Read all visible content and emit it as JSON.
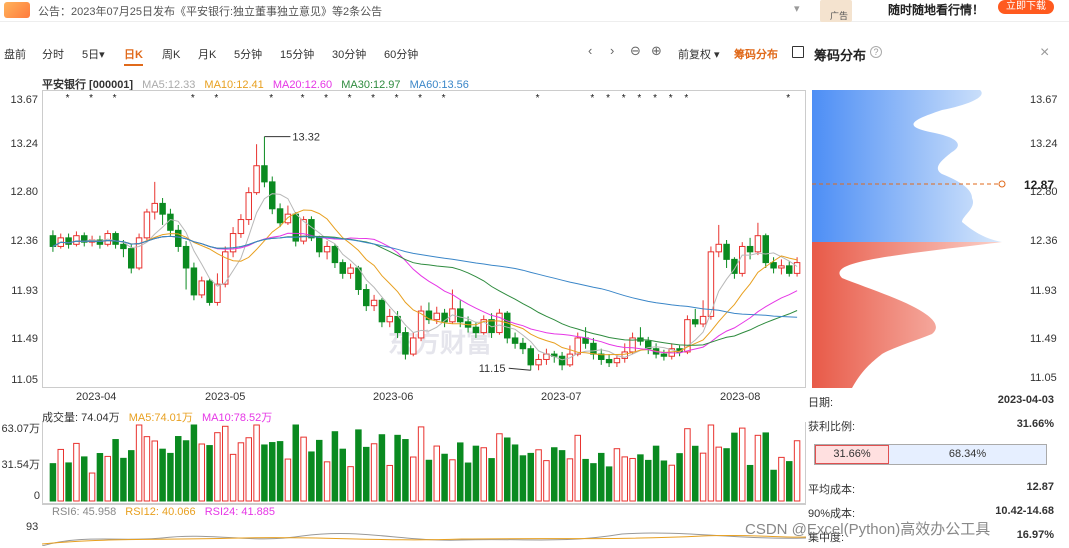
{
  "announcement": {
    "text": "公告：2023年07月25日发布《平安银行:独立董事独立意见》等2条公告",
    "ad_label": "广告",
    "ad_text": "随时随地看行情！",
    "ad_button": "立即下载"
  },
  "toolbar": {
    "tabs": [
      "盘前",
      "分时",
      "5日▾",
      "日K",
      "周K",
      "月K",
      "5分钟",
      "15分钟",
      "30分钟",
      "60分钟"
    ],
    "active_tab": "日K",
    "adjust": "前复权 ▾",
    "chip_toggle": "筹码分布",
    "panel_title": "筹码分布",
    "help": "?",
    "close": "×",
    "prev": "‹",
    "next": "›",
    "zoom_out": "⊖",
    "zoom_in": "⊕"
  },
  "legend": {
    "name": "平安银行 [000001]",
    "ma5": "MA5:12.33",
    "ma10": "MA10:12.41",
    "ma20": "MA20:12.60",
    "ma30": "MA30:12.97",
    "ma60": "MA60:13.56"
  },
  "colors": {
    "up": "#e8322e",
    "down": "#0a8a20",
    "ma5": "#b8b8b8",
    "ma10": "#e8a020",
    "ma20": "#e636e6",
    "ma30": "#2e8b3e",
    "ma60": "#3a86c8",
    "profit": "#f08070",
    "loss": "#6aa8f0",
    "accent": "#e06a1b"
  },
  "price_axis": [
    "13.67",
    "13.24",
    "12.80",
    "12.36",
    "11.93",
    "11.49",
    "11.05"
  ],
  "date_axis": [
    "2023-04",
    "2023-05",
    "2023-06",
    "2023-07",
    "2023-08"
  ],
  "annotations": {
    "high": "13.32",
    "low": "11.15"
  },
  "watermark_logo": "东方财富",
  "volume": {
    "title": "成交量: 74.04万",
    "ma5": "MA5:74.01万",
    "ma10": "MA10:78.52万",
    "ticks": [
      "63.07万",
      "31.54万",
      "0"
    ]
  },
  "rsi": {
    "rsi6": "RSI6: 45.958",
    "rsi12": "RSI12: 40.066",
    "rsi24": "RSI24: 41.885",
    "tick": "93"
  },
  "chip_panel": {
    "ticks": [
      "13.67",
      "13.24",
      "12.80",
      "12.36",
      "11.93",
      "11.49",
      "11.05"
    ],
    "current_price": "12.87",
    "date_label": "日期:",
    "date_value": "2023-04-03",
    "profit_label": "获利比例:",
    "profit_value": "31.66%",
    "profit_pct": "31.66%",
    "loss_pct": "68.34%",
    "avg_cost_label": "平均成本:",
    "avg_cost_value": "12.87",
    "cost90_label": "90%成本:",
    "cost90_value": "10.42-14.68",
    "concentration_label": "集中度:",
    "concentration_value": "16.97%"
  },
  "footer_watermark": "CSDN @Excel(Python)高效办公工具",
  "chart_data": {
    "type": "candlestick",
    "title": "",
    "ylim": [
      11.05,
      13.67
    ],
    "candles": [
      {
        "o": 12.4,
        "c": 12.3,
        "h": 12.45,
        "l": 12.25
      },
      {
        "o": 12.3,
        "c": 12.38,
        "h": 12.42,
        "l": 12.28
      },
      {
        "o": 12.38,
        "c": 12.32,
        "h": 12.42,
        "l": 12.28
      },
      {
        "o": 12.32,
        "c": 12.4,
        "h": 12.44,
        "l": 12.3
      },
      {
        "o": 12.4,
        "c": 12.34,
        "h": 12.43,
        "l": 12.3
      },
      {
        "o": 12.34,
        "c": 12.36,
        "h": 12.4,
        "l": 12.3
      },
      {
        "o": 12.36,
        "c": 12.32,
        "h": 12.4,
        "l": 12.28
      },
      {
        "o": 12.32,
        "c": 12.42,
        "h": 12.45,
        "l": 12.3
      },
      {
        "o": 12.42,
        "c": 12.32,
        "h": 12.44,
        "l": 12.28
      },
      {
        "o": 12.32,
        "c": 12.28,
        "h": 12.36,
        "l": 12.2
      },
      {
        "o": 12.28,
        "c": 12.1,
        "h": 12.32,
        "l": 12.05
      },
      {
        "o": 12.1,
        "c": 12.38,
        "h": 12.42,
        "l": 12.08
      },
      {
        "o": 12.38,
        "c": 12.62,
        "h": 12.65,
        "l": 12.36
      },
      {
        "o": 12.62,
        "c": 12.7,
        "h": 12.9,
        "l": 12.55
      },
      {
        "o": 12.7,
        "c": 12.6,
        "h": 12.75,
        "l": 12.5
      },
      {
        "o": 12.6,
        "c": 12.45,
        "h": 12.65,
        "l": 12.4
      },
      {
        "o": 12.45,
        "c": 12.3,
        "h": 12.5,
        "l": 12.25
      },
      {
        "o": 12.3,
        "c": 12.1,
        "h": 12.35,
        "l": 11.9
      },
      {
        "o": 12.1,
        "c": 11.85,
        "h": 12.15,
        "l": 11.8
      },
      {
        "o": 11.85,
        "c": 11.98,
        "h": 12.02,
        "l": 11.82
      },
      {
        "o": 11.98,
        "c": 11.78,
        "h": 12.0,
        "l": 11.75
      },
      {
        "o": 11.78,
        "c": 11.95,
        "h": 12.05,
        "l": 11.75
      },
      {
        "o": 11.95,
        "c": 12.25,
        "h": 12.3,
        "l": 11.92
      },
      {
        "o": 12.25,
        "c": 12.42,
        "h": 12.48,
        "l": 12.2
      },
      {
        "o": 12.42,
        "c": 12.55,
        "h": 12.6,
        "l": 12.38
      },
      {
        "o": 12.55,
        "c": 12.8,
        "h": 12.85,
        "l": 12.5
      },
      {
        "o": 12.8,
        "c": 13.05,
        "h": 13.25,
        "l": 12.78
      },
      {
        "o": 13.05,
        "c": 12.9,
        "h": 13.32,
        "l": 12.85
      },
      {
        "o": 12.9,
        "c": 12.65,
        "h": 12.95,
        "l": 12.6
      },
      {
        "o": 12.65,
        "c": 12.52,
        "h": 12.7,
        "l": 12.48
      },
      {
        "o": 12.52,
        "c": 12.6,
        "h": 12.68,
        "l": 12.5
      },
      {
        "o": 12.6,
        "c": 12.35,
        "h": 12.62,
        "l": 12.3
      },
      {
        "o": 12.35,
        "c": 12.55,
        "h": 12.58,
        "l": 12.32
      },
      {
        "o": 12.55,
        "c": 12.38,
        "h": 12.58,
        "l": 12.35
      },
      {
        "o": 12.38,
        "c": 12.25,
        "h": 12.4,
        "l": 12.2
      },
      {
        "o": 12.25,
        "c": 12.3,
        "h": 12.35,
        "l": 12.18
      },
      {
        "o": 12.3,
        "c": 12.15,
        "h": 12.32,
        "l": 12.1
      },
      {
        "o": 12.15,
        "c": 12.05,
        "h": 12.18,
        "l": 12.0
      },
      {
        "o": 12.05,
        "c": 12.1,
        "h": 12.14,
        "l": 12.0
      },
      {
        "o": 12.1,
        "c": 11.9,
        "h": 12.12,
        "l": 11.85
      },
      {
        "o": 11.9,
        "c": 11.75,
        "h": 11.95,
        "l": 11.7
      },
      {
        "o": 11.75,
        "c": 11.8,
        "h": 11.85,
        "l": 11.7
      },
      {
        "o": 11.8,
        "c": 11.6,
        "h": 11.82,
        "l": 11.55
      },
      {
        "o": 11.6,
        "c": 11.65,
        "h": 11.72,
        "l": 11.55
      },
      {
        "o": 11.65,
        "c": 11.5,
        "h": 11.7,
        "l": 11.45
      },
      {
        "o": 11.5,
        "c": 11.3,
        "h": 11.55,
        "l": 11.25
      },
      {
        "o": 11.3,
        "c": 11.45,
        "h": 11.5,
        "l": 11.28
      },
      {
        "o": 11.45,
        "c": 11.7,
        "h": 11.75,
        "l": 11.42
      },
      {
        "o": 11.7,
        "c": 11.62,
        "h": 11.78,
        "l": 11.58
      },
      {
        "o": 11.62,
        "c": 11.68,
        "h": 11.74,
        "l": 11.58
      },
      {
        "o": 11.68,
        "c": 11.6,
        "h": 11.72,
        "l": 11.55
      },
      {
        "o": 11.6,
        "c": 11.72,
        "h": 11.9,
        "l": 11.58
      },
      {
        "o": 11.72,
        "c": 11.6,
        "h": 11.8,
        "l": 11.55
      },
      {
        "o": 11.6,
        "c": 11.55,
        "h": 11.65,
        "l": 11.5
      },
      {
        "o": 11.55,
        "c": 11.5,
        "h": 11.6,
        "l": 11.45
      },
      {
        "o": 11.5,
        "c": 11.62,
        "h": 11.66,
        "l": 11.48
      },
      {
        "o": 11.62,
        "c": 11.5,
        "h": 11.68,
        "l": 11.45
      },
      {
        "o": 11.5,
        "c": 11.68,
        "h": 11.72,
        "l": 11.48
      },
      {
        "o": 11.68,
        "c": 11.45,
        "h": 11.7,
        "l": 11.4
      },
      {
        "o": 11.45,
        "c": 11.4,
        "h": 11.5,
        "l": 11.35
      },
      {
        "o": 11.4,
        "c": 11.35,
        "h": 11.45,
        "l": 11.3
      },
      {
        "o": 11.35,
        "c": 11.2,
        "h": 11.38,
        "l": 11.15
      },
      {
        "o": 11.2,
        "c": 11.25,
        "h": 11.3,
        "l": 11.15
      },
      {
        "o": 11.25,
        "c": 11.3,
        "h": 11.35,
        "l": 11.2
      },
      {
        "o": 11.3,
        "c": 11.28,
        "h": 11.33,
        "l": 11.22
      },
      {
        "o": 11.28,
        "c": 11.2,
        "h": 11.32,
        "l": 11.15
      },
      {
        "o": 11.2,
        "c": 11.3,
        "h": 11.38,
        "l": 11.18
      },
      {
        "o": 11.3,
        "c": 11.45,
        "h": 11.5,
        "l": 11.28
      },
      {
        "o": 11.45,
        "c": 11.4,
        "h": 11.55,
        "l": 11.35
      },
      {
        "o": 11.4,
        "c": 11.3,
        "h": 11.45,
        "l": 11.25
      },
      {
        "o": 11.3,
        "c": 11.25,
        "h": 11.35,
        "l": 11.2
      },
      {
        "o": 11.25,
        "c": 11.22,
        "h": 11.3,
        "l": 11.18
      },
      {
        "o": 11.22,
        "c": 11.26,
        "h": 11.3,
        "l": 11.18
      },
      {
        "o": 11.26,
        "c": 11.32,
        "h": 11.4,
        "l": 11.22
      },
      {
        "o": 11.32,
        "c": 11.45,
        "h": 11.5,
        "l": 11.3
      },
      {
        "o": 11.45,
        "c": 11.42,
        "h": 11.55,
        "l": 11.38
      },
      {
        "o": 11.42,
        "c": 11.35,
        "h": 11.46,
        "l": 11.3
      },
      {
        "o": 11.35,
        "c": 11.3,
        "h": 11.4,
        "l": 11.26
      },
      {
        "o": 11.3,
        "c": 11.28,
        "h": 11.34,
        "l": 11.24
      },
      {
        "o": 11.28,
        "c": 11.35,
        "h": 11.4,
        "l": 11.25
      },
      {
        "o": 11.35,
        "c": 11.32,
        "h": 11.38,
        "l": 11.28
      },
      {
        "o": 11.32,
        "c": 11.62,
        "h": 11.66,
        "l": 11.3
      },
      {
        "o": 11.62,
        "c": 11.58,
        "h": 11.72,
        "l": 11.55
      },
      {
        "o": 11.58,
        "c": 11.65,
        "h": 11.8,
        "l": 11.55
      },
      {
        "o": 11.65,
        "c": 12.25,
        "h": 12.3,
        "l": 11.62
      },
      {
        "o": 12.25,
        "c": 12.32,
        "h": 12.5,
        "l": 12.2
      },
      {
        "o": 12.32,
        "c": 12.18,
        "h": 12.36,
        "l": 12.1
      },
      {
        "o": 12.18,
        "c": 12.05,
        "h": 12.2,
        "l": 12.0
      },
      {
        "o": 12.05,
        "c": 12.3,
        "h": 12.34,
        "l": 12.02
      },
      {
        "o": 12.3,
        "c": 12.25,
        "h": 12.38,
        "l": 12.18
      },
      {
        "o": 12.25,
        "c": 12.4,
        "h": 12.52,
        "l": 12.22
      },
      {
        "o": 12.4,
        "c": 12.15,
        "h": 12.42,
        "l": 12.1
      },
      {
        "o": 12.15,
        "c": 12.1,
        "h": 12.2,
        "l": 12.05
      },
      {
        "o": 12.1,
        "c": 12.12,
        "h": 12.18,
        "l": 12.04
      },
      {
        "o": 12.12,
        "c": 12.05,
        "h": 12.16,
        "l": 12.02
      },
      {
        "o": 12.05,
        "c": 12.15,
        "h": 12.2,
        "l": 12.02
      }
    ]
  }
}
